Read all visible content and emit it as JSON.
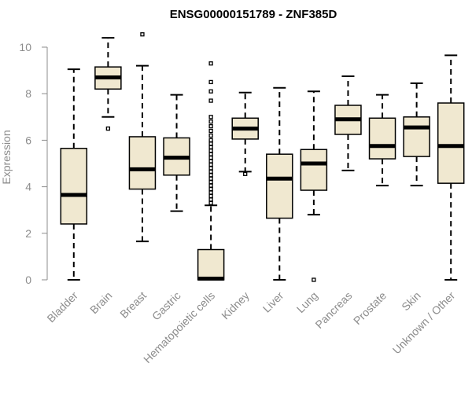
{
  "chart_data": {
    "type": "boxplot",
    "title": "ENSG00000151789 - ZNF385D",
    "xlabel": "",
    "ylabel": "Expression",
    "ylim": [
      0,
      10.5
    ],
    "yticks": [
      0,
      2,
      4,
      6,
      8,
      10
    ],
    "grid": false,
    "colors": {
      "box_fill": "#f0e8d0",
      "stroke": "#000000",
      "axis": "#8c8c8c"
    },
    "categories": [
      "Bladder",
      "Brain",
      "Breast",
      "Gastric",
      "Hematopoietic cells",
      "Kidney",
      "Liver",
      "Lung",
      "Pancreas",
      "Prostate",
      "Skin",
      "Unknown / Other"
    ],
    "boxes": [
      {
        "label": "Bladder",
        "min": 0.0,
        "q1": 2.4,
        "median": 3.65,
        "q3": 5.65,
        "max": 9.05,
        "outliers": []
      },
      {
        "label": "Brain",
        "min": 7.0,
        "q1": 8.2,
        "median": 8.7,
        "q3": 9.15,
        "max": 10.4,
        "outliers": [
          6.5
        ]
      },
      {
        "label": "Breast",
        "min": 1.65,
        "q1": 3.9,
        "median": 4.75,
        "q3": 6.15,
        "max": 9.2,
        "outliers": [
          10.55
        ]
      },
      {
        "label": "Gastric",
        "min": 2.95,
        "q1": 4.5,
        "median": 5.25,
        "q3": 6.1,
        "max": 7.95,
        "outliers": []
      },
      {
        "label": "Hematopoietic cells",
        "min": 0.0,
        "q1": 0.0,
        "median": 0.05,
        "q3": 1.3,
        "max": 3.2,
        "outliers": [
          9.3,
          8.5,
          8.1,
          7.7,
          7.0,
          6.8,
          6.6,
          6.4,
          6.2,
          6.0,
          5.85,
          5.7,
          5.55,
          5.4,
          5.25,
          5.1,
          4.95,
          4.8,
          4.65,
          4.5,
          4.35,
          4.2,
          4.05,
          3.9,
          3.75,
          3.6,
          3.45,
          3.3
        ]
      },
      {
        "label": "Kidney",
        "min": 4.65,
        "q1": 6.05,
        "median": 6.5,
        "q3": 6.95,
        "max": 8.05,
        "outliers": [
          4.55
        ]
      },
      {
        "label": "Liver",
        "min": 0.0,
        "q1": 2.65,
        "median": 4.35,
        "q3": 5.4,
        "max": 8.25,
        "outliers": []
      },
      {
        "label": "Lung",
        "min": 2.8,
        "q1": 3.85,
        "median": 5.0,
        "q3": 5.6,
        "max": 8.1,
        "outliers": [
          0.0
        ]
      },
      {
        "label": "Pancreas",
        "min": 4.7,
        "q1": 6.25,
        "median": 6.9,
        "q3": 7.5,
        "max": 8.75,
        "outliers": []
      },
      {
        "label": "Prostate",
        "min": 4.05,
        "q1": 5.2,
        "median": 5.75,
        "q3": 6.95,
        "max": 7.95,
        "outliers": []
      },
      {
        "label": "Skin",
        "min": 4.05,
        "q1": 5.3,
        "median": 6.55,
        "q3": 7.0,
        "max": 8.45,
        "outliers": []
      },
      {
        "label": "Unknown / Other",
        "min": 0.0,
        "q1": 4.15,
        "median": 5.75,
        "q3": 7.6,
        "max": 9.65,
        "outliers": []
      }
    ]
  }
}
